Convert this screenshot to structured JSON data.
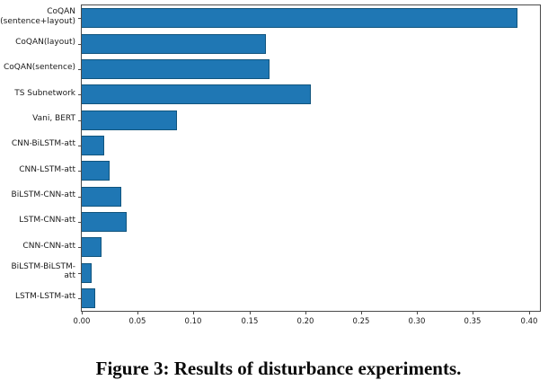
{
  "figure": {
    "caption": "Figure 3: Results of disturbance experiments."
  },
  "chart_data": {
    "type": "bar",
    "orientation": "horizontal",
    "title": "",
    "xlabel": "",
    "ylabel": "",
    "categories": [
      "CoQAN\n(sentence+layout)",
      "CoQAN(layout)",
      "CoQAN(sentence)",
      "TS Subnetwork",
      "Vani, BERT",
      "CNN-BiLSTM-att",
      "CNN-LSTM-att",
      "BiLSTM-CNN-att",
      "LSTM-CNN-att",
      "CNN-CNN-att",
      "BiLSTM-BiLSTM-att",
      "LSTM-LSTM-att"
    ],
    "values": [
      0.39,
      0.165,
      0.168,
      0.205,
      0.085,
      0.02,
      0.025,
      0.035,
      0.04,
      0.018,
      0.009,
      0.012
    ],
    "xticks": [
      "0.00",
      "0.05",
      "0.10",
      "0.15",
      "0.20",
      "0.25",
      "0.30",
      "0.35",
      "0.40"
    ],
    "xtick_values": [
      0,
      0.05,
      0.1,
      0.15,
      0.2,
      0.25,
      0.3,
      0.35,
      0.4
    ],
    "xlim": [
      0,
      0.41
    ],
    "grid": false,
    "legend": null,
    "bar_color": "#1f77b4",
    "bar_edge_color": "#11557e",
    "spine_color": "#4a4a4a"
  }
}
